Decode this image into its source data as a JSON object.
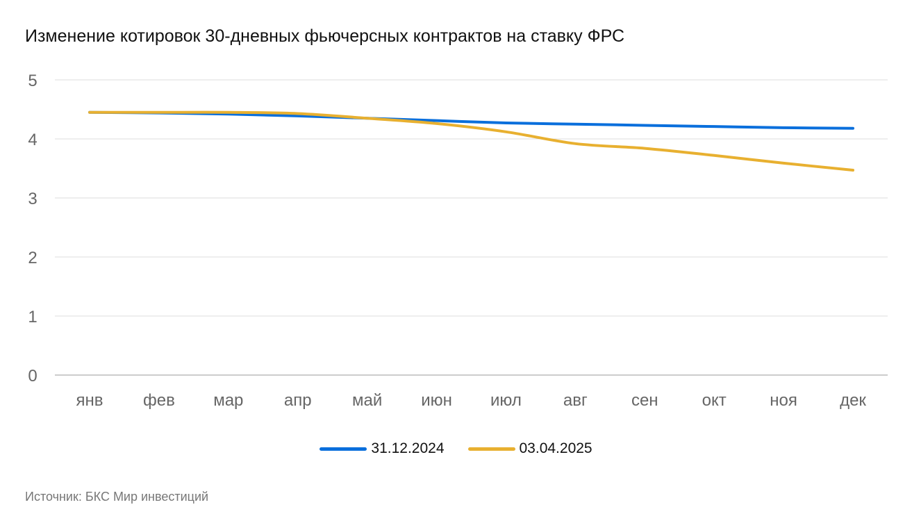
{
  "chart_data": {
    "type": "line",
    "title": "Изменение котировок 30-дневных фьючерсных контрактов на ставку ФРС",
    "xlabel": "",
    "ylabel": "",
    "categories": [
      "янв",
      "фев",
      "мар",
      "апр",
      "май",
      "июн",
      "июл",
      "авг",
      "сен",
      "окт",
      "ноя",
      "дек"
    ],
    "y_ticks": [
      "0",
      "1",
      "2",
      "3",
      "4",
      "5"
    ],
    "ylim": [
      0,
      5
    ],
    "grid": "horizontal",
    "legend_position": "bottom",
    "series": [
      {
        "name": "31.12.2024",
        "color": "#0a6fdc",
        "values": [
          4.45,
          4.44,
          4.42,
          4.39,
          4.35,
          4.31,
          4.27,
          4.25,
          4.23,
          4.21,
          4.19,
          4.18
        ]
      },
      {
        "name": "03.04.2025",
        "color": "#e8b030",
        "values": [
          4.45,
          4.45,
          4.45,
          4.43,
          4.35,
          4.26,
          4.12,
          3.92,
          3.84,
          3.72,
          3.59,
          3.47
        ]
      }
    ]
  },
  "source": "Источник: БКС Мир инвестиций"
}
